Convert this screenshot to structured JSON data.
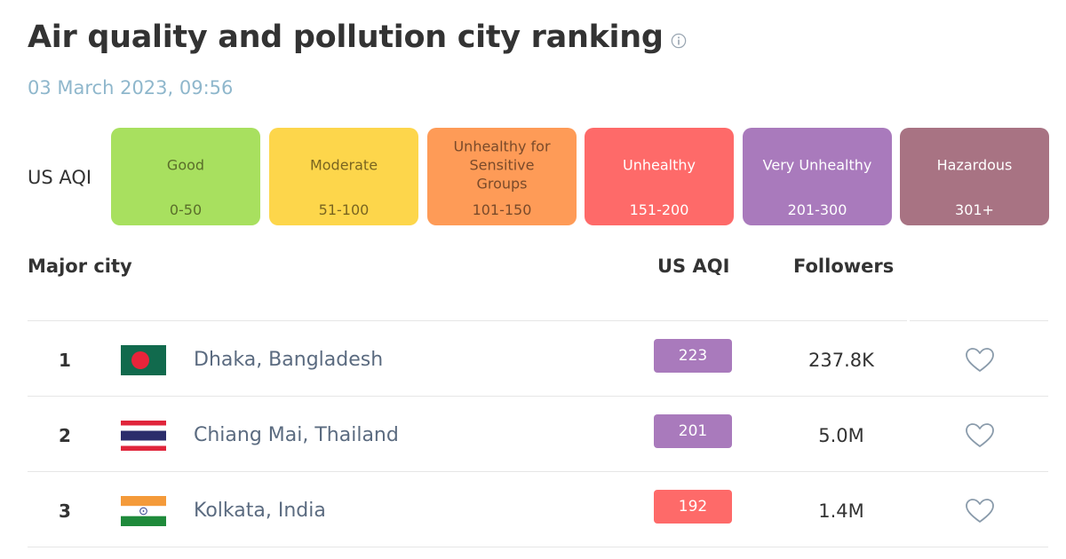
{
  "header": {
    "title": "Air quality and pollution city ranking",
    "timestamp": "03 March 2023, 09:56"
  },
  "legend": {
    "label": "US AQI",
    "levels": [
      {
        "name": "Good",
        "range": "0-50",
        "color": "#a8e05f",
        "text_color": "#5a6e2a"
      },
      {
        "name": "Moderate",
        "range": "51-100",
        "color": "#fdd64b",
        "text_color": "#7a6520"
      },
      {
        "name": "Unhealthy for Sensitive Groups",
        "range": "101-150",
        "color": "#fe9b57",
        "text_color": "#7a4a2a"
      },
      {
        "name": "Unhealthy",
        "range": "151-200",
        "color": "#fe6a69",
        "text_color": "#ffffff"
      },
      {
        "name": "Very Unhealthy",
        "range": "201-300",
        "color": "#a97abc",
        "text_color": "#ffffff"
      },
      {
        "name": "Hazardous",
        "range": "301+",
        "color": "#a87383",
        "text_color": "#ffffff"
      }
    ]
  },
  "table": {
    "columns": {
      "city": "Major city",
      "aqi": "US AQI",
      "followers": "Followers"
    },
    "rows": [
      {
        "rank": "1",
        "city": "Dhaka, Bangladesh",
        "aqi": "223",
        "aqi_color": "#a97abc",
        "followers": "237.8K",
        "flag": "bangladesh-flag-icon"
      },
      {
        "rank": "2",
        "city": "Chiang Mai, Thailand",
        "aqi": "201",
        "aqi_color": "#a97abc",
        "followers": "5.0M",
        "flag": "thailand-flag-icon"
      },
      {
        "rank": "3",
        "city": "Kolkata, India",
        "aqi": "192",
        "aqi_color": "#fe6a69",
        "followers": "1.4M",
        "flag": "india-flag-icon"
      }
    ]
  }
}
